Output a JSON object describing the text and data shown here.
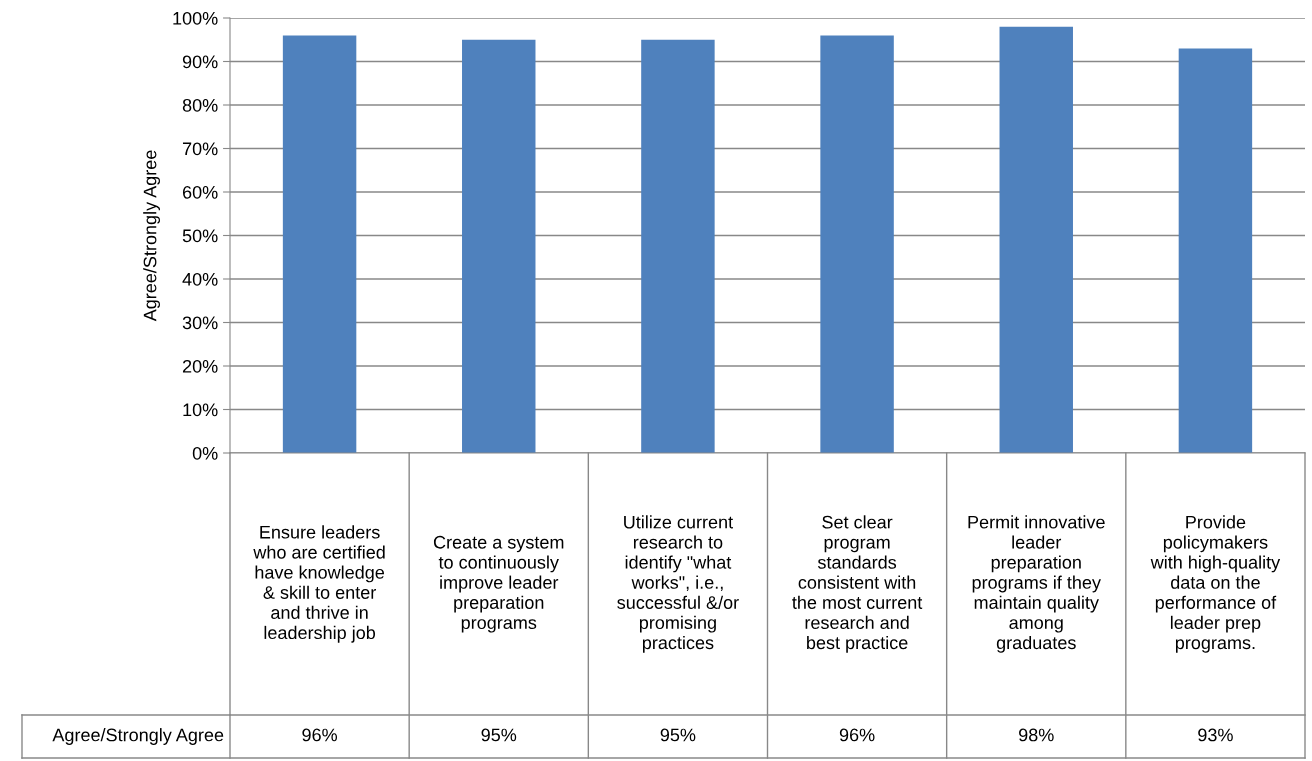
{
  "chart_data": {
    "type": "bar",
    "ylabel": "Agree/Strongly Agree",
    "categories": [
      "Ensure leaders who are certified have knowledge & skill to enter and thrive in leadership job",
      "Create a system to continuously improve leader preparation programs",
      "Utilize current research to identify \"what works\", i.e., successful &/or promising practices",
      "Set clear program standards consistent with the most current research and best practice",
      "Permit innovative leader preparation programs if they maintain quality among graduates",
      "Provide policymakers with high-quality data on the performance of leader prep programs."
    ],
    "series": [
      {
        "name": "Agree/Strongly Agree",
        "color": "#4f81bd",
        "values": [
          96,
          95,
          95,
          96,
          98,
          93
        ],
        "value_labels": [
          "96%",
          "95%",
          "95%",
          "96%",
          "98%",
          "93%"
        ]
      }
    ],
    "ylim": [
      0,
      100
    ],
    "yticks": [
      {
        "value": 0,
        "label": "0%"
      },
      {
        "value": 10,
        "label": "10%"
      },
      {
        "value": 20,
        "label": "20%"
      },
      {
        "value": 30,
        "label": "30%"
      },
      {
        "value": 40,
        "label": "40%"
      },
      {
        "value": 50,
        "label": "50%"
      },
      {
        "value": 60,
        "label": "60%"
      },
      {
        "value": 70,
        "label": "70%"
      },
      {
        "value": 80,
        "label": "80%"
      },
      {
        "value": 90,
        "label": "90%"
      },
      {
        "value": 100,
        "label": "100%"
      }
    ],
    "grid": "y"
  }
}
